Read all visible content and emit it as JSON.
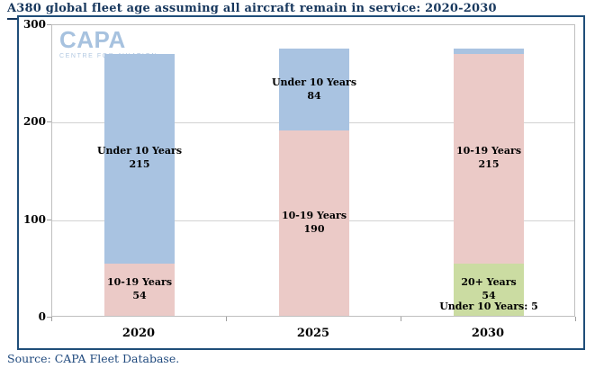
{
  "chart_data": {
    "type": "bar",
    "stacked": true,
    "title": "A380 global fleet age assuming all aircraft remain in service: 2020-2030",
    "categories": [
      "2020",
      "2025",
      "2030"
    ],
    "series": [
      {
        "name": "Under 10 Years",
        "color": "#A9C3E1",
        "values": [
          215,
          84,
          5
        ]
      },
      {
        "name": "10-19 Years",
        "color": "#EBCAC7",
        "values": [
          54,
          190,
          215
        ]
      },
      {
        "name": "20+ Years",
        "color": "#CBDCA2",
        "values": [
          0,
          0,
          54
        ]
      }
    ],
    "ylim": [
      0,
      300
    ],
    "yticks": [
      0,
      100,
      200,
      300
    ],
    "grid": true,
    "legend_position": "none",
    "data_labels": [
      [
        "Under 10 Years 215",
        "10-19 Years 54"
      ],
      [
        "Under 10 Years 84",
        "10-19 Years 190"
      ],
      [
        "Under 10 Years: 5",
        "10-19 Years 215",
        "20+ Years 54"
      ]
    ]
  },
  "logo": {
    "name": "CAPA",
    "tagline": "CENTRE FOR AVIATION"
  },
  "source": "Source: CAPA Fleet Database.",
  "colors": {
    "title_text": "#17375D",
    "frame_border": "#1F4E79",
    "plot_border": "#BFBFBF",
    "gridline": "#D2D2D2",
    "tick": "#9E9E9E",
    "data_label_text": "#000000",
    "source_text": "#1F497D",
    "logo_primary": "#A7C2DF",
    "logo_secondary": "#B2C9E2",
    "series_under10": "#A9C3E1",
    "series_10to19": "#EBCAC7",
    "series_20plus": "#CBDCA2"
  }
}
